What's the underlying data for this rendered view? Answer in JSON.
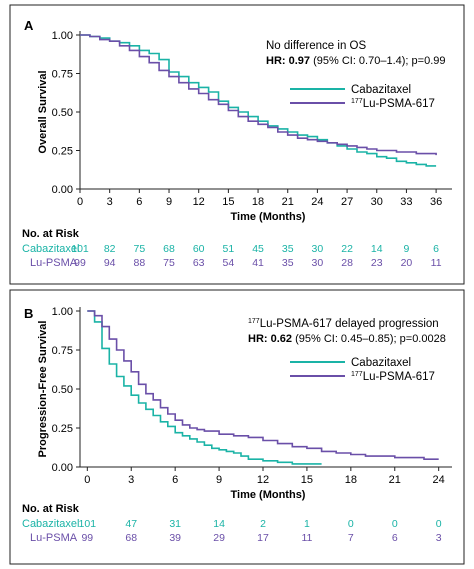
{
  "colors": {
    "cabazitaxel": "#1ab3a6",
    "lu_psma": "#6a4fa8",
    "axis": "#222222"
  },
  "chart_data": [
    {
      "panel": "A",
      "type": "line",
      "ylabel": "Overall Survival",
      "xlabel": "Time (Months)",
      "xticks": [
        "0",
        "3",
        "6",
        "9",
        "12",
        "15",
        "18",
        "21",
        "24",
        "27",
        "30",
        "33",
        "36"
      ],
      "yticks": [
        "0.00",
        "0.25",
        "0.50",
        "0.75",
        "1.00"
      ],
      "xlim": [
        0,
        37
      ],
      "ylim": [
        0,
        1.0
      ],
      "annotation": {
        "line1": "No difference in OS",
        "hr_label": "HR: 0.97",
        "hr_rest": " (95% CI: 0.70–1.4); p=0.99"
      },
      "legend": {
        "placement": "right",
        "cabazitaxel": "Cabazitaxel",
        "lu_sup": "177",
        "lu_rest": "Lu-PSMA-617"
      },
      "series": [
        {
          "name": "Cabazitaxel",
          "color": "#1ab3a6",
          "x": [
            0,
            1,
            2,
            3,
            4,
            5,
            6,
            7,
            8,
            9,
            10,
            11,
            12,
            13,
            14,
            15,
            16,
            17,
            18,
            19,
            20,
            21,
            22,
            23,
            24,
            25,
            26,
            27,
            28,
            29,
            30,
            31,
            32,
            33,
            34,
            35,
            36
          ],
          "y": [
            1.0,
            0.99,
            0.98,
            0.96,
            0.95,
            0.93,
            0.9,
            0.88,
            0.84,
            0.76,
            0.73,
            0.69,
            0.66,
            0.63,
            0.57,
            0.53,
            0.5,
            0.47,
            0.44,
            0.41,
            0.39,
            0.37,
            0.35,
            0.34,
            0.32,
            0.3,
            0.28,
            0.26,
            0.24,
            0.23,
            0.21,
            0.2,
            0.18,
            0.17,
            0.16,
            0.15,
            0.15
          ]
        },
        {
          "name": "177Lu-PSMA-617",
          "color": "#6a4fa8",
          "x": [
            0,
            1,
            2,
            3,
            4,
            5,
            6,
            7,
            8,
            9,
            10,
            11,
            12,
            13,
            14,
            15,
            16,
            17,
            18,
            19,
            20,
            21,
            22,
            23,
            24,
            25,
            26,
            27,
            28,
            29,
            30,
            31,
            32,
            33,
            34,
            35,
            36
          ],
          "y": [
            1.0,
            0.99,
            0.97,
            0.96,
            0.93,
            0.9,
            0.86,
            0.82,
            0.77,
            0.73,
            0.69,
            0.65,
            0.62,
            0.58,
            0.55,
            0.51,
            0.47,
            0.44,
            0.42,
            0.4,
            0.37,
            0.35,
            0.33,
            0.32,
            0.31,
            0.3,
            0.29,
            0.28,
            0.27,
            0.26,
            0.25,
            0.25,
            0.24,
            0.24,
            0.23,
            0.23,
            0.22
          ]
        }
      ],
      "risk": {
        "title": "No. at Risk",
        "cab_label": "Cabazitaxel",
        "lu_label": "Lu-PSMA",
        "cab": [
          "101",
          "82",
          "75",
          "68",
          "60",
          "51",
          "45",
          "35",
          "30",
          "22",
          "14",
          "9",
          "6"
        ],
        "lu": [
          "99",
          "94",
          "88",
          "75",
          "63",
          "54",
          "41",
          "35",
          "30",
          "28",
          "23",
          "20",
          "11"
        ]
      }
    },
    {
      "panel": "B",
      "type": "line",
      "ylabel": "Progression-Free Survival",
      "xlabel": "Time (Months)",
      "xticks": [
        "0",
        "3",
        "6",
        "9",
        "12",
        "15",
        "18",
        "21",
        "24"
      ],
      "yticks": [
        "0.00",
        "0.25",
        "0.50",
        "0.75",
        "1.00"
      ],
      "xlim": [
        -0.5,
        24.5
      ],
      "ylim": [
        0,
        1.0
      ],
      "annotation": {
        "line1_sup": "177",
        "line1_rest": "Lu-PSMA-617 delayed progression",
        "hr_label": "HR: 0.62",
        "hr_rest": " (95% CI: 0.45–0.85); p=0.0028"
      },
      "legend": {
        "placement": "right",
        "cabazitaxel": "Cabazitaxel",
        "lu_sup": "177",
        "lu_rest": "Lu-PSMA-617"
      },
      "series": [
        {
          "name": "Cabazitaxel",
          "color": "#1ab3a6",
          "x": [
            0,
            0.5,
            1,
            1.5,
            2,
            2.5,
            3,
            3.5,
            4,
            4.5,
            5,
            5.5,
            6,
            6.5,
            7,
            7.5,
            8,
            8.5,
            9,
            9.5,
            10,
            10.5,
            11,
            12,
            13,
            14,
            15,
            16
          ],
          "y": [
            1.0,
            0.93,
            0.76,
            0.66,
            0.58,
            0.52,
            0.46,
            0.41,
            0.37,
            0.33,
            0.29,
            0.26,
            0.22,
            0.2,
            0.18,
            0.16,
            0.14,
            0.12,
            0.11,
            0.1,
            0.09,
            0.07,
            0.05,
            0.04,
            0.03,
            0.02,
            0.02,
            0.02
          ]
        },
        {
          "name": "177Lu-PSMA-617",
          "color": "#6a4fa8",
          "x": [
            0,
            0.5,
            1,
            1.5,
            2,
            2.5,
            3,
            3.5,
            4,
            4.5,
            5,
            5.5,
            6,
            6.5,
            7,
            7.5,
            8,
            9,
            10,
            11,
            12,
            13,
            14,
            15,
            16,
            17,
            18,
            19,
            20,
            21,
            22,
            23,
            24
          ],
          "y": [
            1.0,
            0.97,
            0.9,
            0.82,
            0.75,
            0.68,
            0.61,
            0.53,
            0.47,
            0.43,
            0.38,
            0.34,
            0.3,
            0.27,
            0.25,
            0.24,
            0.23,
            0.21,
            0.2,
            0.19,
            0.17,
            0.15,
            0.13,
            0.12,
            0.1,
            0.09,
            0.08,
            0.07,
            0.07,
            0.06,
            0.06,
            0.05,
            0.05
          ]
        }
      ],
      "risk": {
        "title": "No. at Risk",
        "cab_label": "Cabazitaxel",
        "lu_label": "Lu-PSMA",
        "cab": [
          "101",
          "47",
          "31",
          "14",
          "2",
          "1",
          "0",
          "0",
          "0"
        ],
        "lu": [
          "99",
          "68",
          "39",
          "29",
          "17",
          "11",
          "7",
          "6",
          "3"
        ]
      }
    }
  ]
}
